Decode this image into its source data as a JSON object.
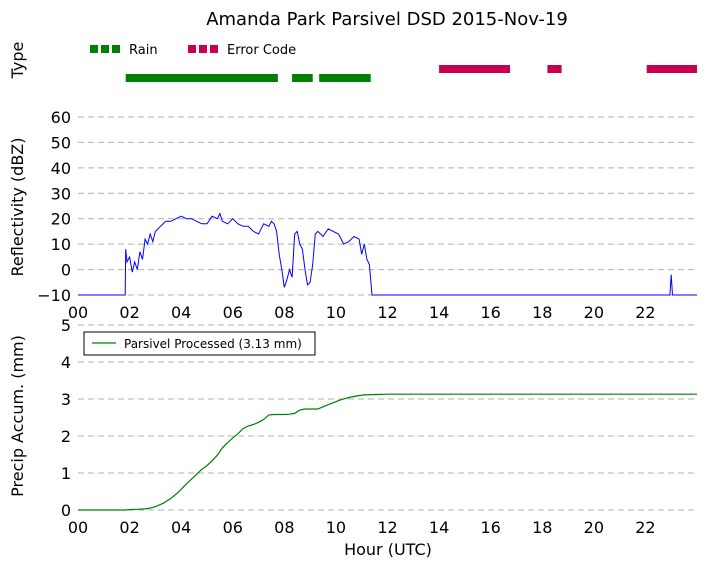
{
  "title": "Amanda Park Parsivel DSD 2015-Nov-19",
  "chart_data": [
    {
      "type": "timeline",
      "ylabel": "Type",
      "xlim": [
        0,
        24
      ],
      "legend": {
        "placement": "top-left",
        "entries": [
          "Rain",
          "Error Code"
        ]
      },
      "colors": {
        "Rain": "#008000",
        "Error Code": "#c8004f"
      },
      "segments": [
        {
          "name": "Rain",
          "row": 0,
          "intervals": [
            [
              1.85,
              7.75
            ],
            [
              8.3,
              9.1
            ],
            [
              9.35,
              11.35
            ]
          ]
        },
        {
          "name": "Error Code",
          "row": 1,
          "intervals": [
            [
              14.0,
              16.75
            ],
            [
              18.2,
              18.75
            ],
            [
              22.05,
              24.0
            ]
          ]
        }
      ]
    },
    {
      "type": "line",
      "ylabel": "Reflectivity (dBZ)",
      "xlim": [
        0,
        24
      ],
      "ylim": [
        -10,
        60
      ],
      "yticks": [
        -10,
        0,
        10,
        20,
        30,
        40,
        50,
        60
      ],
      "grid": true,
      "color": "#0000ff",
      "x": [
        0,
        1.83,
        1.85,
        1.9,
        2.0,
        2.1,
        2.2,
        2.3,
        2.4,
        2.5,
        2.6,
        2.7,
        2.8,
        2.9,
        3.0,
        3.2,
        3.4,
        3.6,
        3.8,
        4.0,
        4.2,
        4.4,
        4.6,
        4.8,
        5.0,
        5.2,
        5.4,
        5.5,
        5.6,
        5.8,
        6.0,
        6.2,
        6.4,
        6.6,
        6.8,
        7.0,
        7.2,
        7.4,
        7.5,
        7.6,
        7.7,
        7.8,
        7.9,
        8.0,
        8.1,
        8.2,
        8.3,
        8.4,
        8.5,
        8.6,
        8.7,
        8.8,
        8.9,
        9.0,
        9.1,
        9.2,
        9.3,
        9.5,
        9.7,
        9.9,
        10.1,
        10.3,
        10.5,
        10.7,
        10.9,
        11.0,
        11.1,
        11.2,
        11.3,
        11.35,
        11.4,
        11.45,
        11.5,
        22.95,
        23.0,
        23.05,
        24.0
      ],
      "y": [
        -10,
        -10,
        8,
        3,
        5,
        -1,
        3,
        0,
        7,
        4,
        12,
        10,
        14,
        11,
        15,
        17,
        19,
        19,
        20,
        21,
        20,
        20,
        19,
        18,
        18,
        21,
        20,
        22,
        19,
        18,
        20,
        18,
        17,
        17,
        15,
        14,
        18,
        17,
        19,
        18,
        15,
        6,
        0,
        -7,
        -4,
        0,
        -3,
        14,
        15,
        10,
        8,
        0,
        -6,
        -5,
        2,
        14,
        15,
        13,
        16,
        15,
        14,
        10,
        11,
        13,
        12,
        6,
        10,
        4,
        2,
        -4,
        -10,
        -10,
        -10,
        -10,
        -2,
        -10,
        -10
      ]
    },
    {
      "type": "line",
      "xlabel": "Hour (UTC)",
      "ylabel": "Precip Accum. (mm)",
      "xlim": [
        0,
        24
      ],
      "ylim": [
        0,
        5
      ],
      "xticks": [
        "00",
        "02",
        "04",
        "06",
        "08",
        "10",
        "12",
        "14",
        "16",
        "18",
        "20",
        "22"
      ],
      "yticks": [
        0,
        1,
        2,
        3,
        4,
        5
      ],
      "grid": true,
      "legend": {
        "placement": "top-left",
        "entries": [
          "Parsivel Processed (3.13 mm)"
        ]
      },
      "series": [
        {
          "name": "Parsivel Processed (3.13 mm)",
          "color": "#008000",
          "x": [
            0,
            1.8,
            2.0,
            2.3,
            2.6,
            2.8,
            3.0,
            3.3,
            3.6,
            3.9,
            4.2,
            4.5,
            4.8,
            5.0,
            5.2,
            5.4,
            5.6,
            5.8,
            6.0,
            6.2,
            6.4,
            6.6,
            6.8,
            7.0,
            7.2,
            7.4,
            7.6,
            7.8,
            8.0,
            8.2,
            8.4,
            8.6,
            8.8,
            9.0,
            9.3,
            9.6,
            9.9,
            10.2,
            10.5,
            10.8,
            11.1,
            11.4,
            12.0,
            24.0
          ],
          "y": [
            0,
            0,
            0.01,
            0.02,
            0.03,
            0.05,
            0.09,
            0.18,
            0.31,
            0.49,
            0.7,
            0.9,
            1.1,
            1.2,
            1.33,
            1.48,
            1.68,
            1.82,
            1.95,
            2.06,
            2.2,
            2.27,
            2.31,
            2.37,
            2.45,
            2.57,
            2.58,
            2.58,
            2.58,
            2.59,
            2.61,
            2.7,
            2.73,
            2.73,
            2.73,
            2.82,
            2.9,
            2.98,
            3.04,
            3.08,
            3.11,
            3.12,
            3.13,
            3.13
          ]
        }
      ]
    }
  ]
}
